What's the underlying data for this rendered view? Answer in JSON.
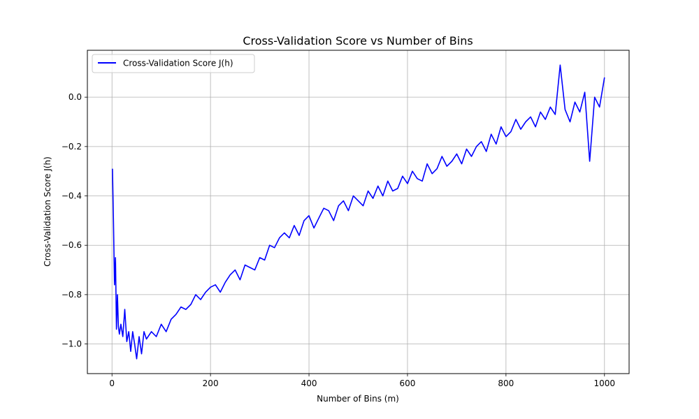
{
  "chart_data": {
    "type": "line",
    "title": "Cross-Validation Score vs Number of Bins",
    "xlabel": "Number of Bins (m)",
    "ylabel": "Cross-Validation Score J(h)",
    "xlim": [
      -50,
      1050
    ],
    "ylim": [
      -1.12,
      0.19
    ],
    "x_ticks": [
      0,
      200,
      400,
      600,
      800,
      1000
    ],
    "y_ticks": [
      -1.0,
      -0.8,
      -0.6,
      -0.4,
      -0.2,
      0.0
    ],
    "x_tick_labels": [
      "0",
      "200",
      "400",
      "600",
      "800",
      "1000"
    ],
    "y_tick_labels": [
      "−1.0",
      "−0.8",
      "−0.6",
      "−0.4",
      "−0.2",
      "0.0"
    ],
    "grid": true,
    "legend_position": "top-left",
    "series": [
      {
        "name": "Cross-Validation Score J(h)",
        "color": "#0000ff",
        "x": [
          1,
          3,
          5,
          7,
          9,
          11,
          13,
          15,
          18,
          22,
          26,
          30,
          34,
          38,
          42,
          46,
          50,
          55,
          60,
          65,
          70,
          80,
          90,
          100,
          110,
          120,
          130,
          140,
          150,
          160,
          170,
          180,
          190,
          200,
          210,
          220,
          230,
          240,
          250,
          260,
          270,
          280,
          290,
          300,
          310,
          320,
          330,
          340,
          350,
          360,
          370,
          380,
          390,
          400,
          410,
          420,
          430,
          440,
          450,
          460,
          470,
          480,
          490,
          500,
          510,
          520,
          530,
          540,
          550,
          560,
          570,
          580,
          590,
          600,
          610,
          620,
          630,
          640,
          650,
          660,
          670,
          680,
          690,
          700,
          710,
          720,
          730,
          740,
          750,
          760,
          770,
          780,
          790,
          800,
          810,
          820,
          830,
          840,
          850,
          860,
          870,
          880,
          890,
          900,
          910,
          920,
          930,
          940,
          950,
          960,
          970,
          980,
          990,
          1000
        ],
        "y": [
          -0.29,
          -0.5,
          -0.76,
          -0.65,
          -0.94,
          -0.8,
          -0.93,
          -0.96,
          -0.92,
          -0.97,
          -0.86,
          -0.99,
          -0.95,
          -1.03,
          -0.95,
          -1.0,
          -1.06,
          -0.97,
          -1.04,
          -0.95,
          -0.98,
          -0.95,
          -0.97,
          -0.92,
          -0.95,
          -0.9,
          -0.88,
          -0.85,
          -0.86,
          -0.84,
          -0.8,
          -0.82,
          -0.79,
          -0.77,
          -0.76,
          -0.79,
          -0.75,
          -0.72,
          -0.7,
          -0.74,
          -0.68,
          -0.69,
          -0.7,
          -0.65,
          -0.66,
          -0.6,
          -0.61,
          -0.57,
          -0.55,
          -0.57,
          -0.52,
          -0.56,
          -0.5,
          -0.48,
          -0.53,
          -0.49,
          -0.45,
          -0.46,
          -0.5,
          -0.44,
          -0.42,
          -0.46,
          -0.4,
          -0.42,
          -0.44,
          -0.38,
          -0.41,
          -0.36,
          -0.4,
          -0.34,
          -0.38,
          -0.37,
          -0.32,
          -0.35,
          -0.3,
          -0.33,
          -0.34,
          -0.27,
          -0.31,
          -0.29,
          -0.24,
          -0.28,
          -0.26,
          -0.23,
          -0.27,
          -0.21,
          -0.24,
          -0.2,
          -0.18,
          -0.22,
          -0.15,
          -0.19,
          -0.12,
          -0.16,
          -0.14,
          -0.09,
          -0.13,
          -0.1,
          -0.08,
          -0.12,
          -0.06,
          -0.09,
          -0.04,
          -0.07,
          0.13,
          -0.05,
          -0.1,
          -0.02,
          -0.06,
          0.02,
          -0.26,
          0.0,
          -0.04,
          0.08
        ]
      }
    ]
  }
}
